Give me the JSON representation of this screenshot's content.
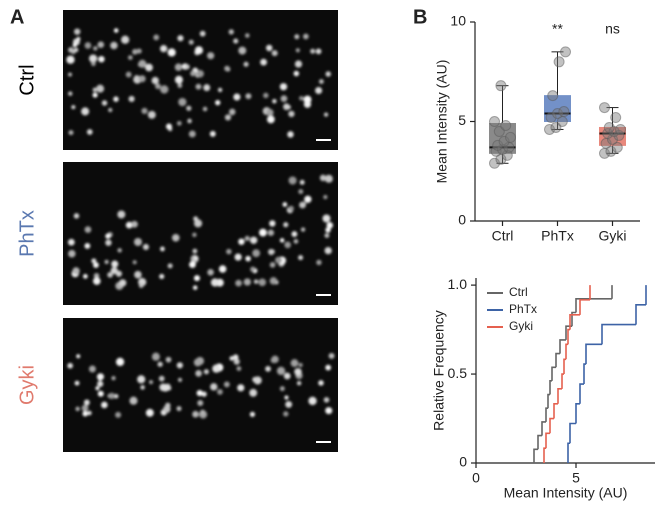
{
  "panel_labels": [
    "A",
    "B"
  ],
  "images": [
    {
      "label": "Ctrl",
      "color": "#000000"
    },
    {
      "label": "PhTx",
      "color": "#5a78b0"
    },
    {
      "label": "Gyki",
      "color": "#e07a6d"
    }
  ],
  "chart_data": [
    {
      "type": "box",
      "y_label": "Mean Intensity (AU)",
      "categories": [
        "Ctrl",
        "PhTx",
        "Gyki"
      ],
      "colors": [
        "#8a8a8a",
        "#7391c8",
        "#e8887c"
      ],
      "whisker_low": [
        2.9,
        4.6,
        3.4
      ],
      "q1": [
        3.4,
        5.0,
        3.8
      ],
      "median": [
        3.7,
        5.4,
        4.4
      ],
      "q3": [
        4.9,
        6.3,
        4.7
      ],
      "whisker_high": [
        6.8,
        8.5,
        5.7
      ],
      "points": [
        [
          2.9,
          3.1,
          3.3,
          3.5,
          3.6,
          3.7,
          3.8,
          4.0,
          4.2,
          4.5,
          4.8,
          5.0,
          6.8
        ],
        [
          4.6,
          4.7,
          5.0,
          5.2,
          5.4,
          5.5,
          6.3,
          8.0,
          8.5
        ],
        [
          3.4,
          3.5,
          3.7,
          3.9,
          4.1,
          4.3,
          4.4,
          4.5,
          4.6,
          4.7,
          5.2,
          5.7
        ]
      ],
      "annotations": [
        null,
        "**",
        "ns"
      ],
      "ylim": [
        0,
        10
      ],
      "yticks": [
        0,
        5,
        10
      ]
    },
    {
      "type": "ecdf",
      "x_label": "Mean Intensity (AU)",
      "y_label": "Relative Frequency",
      "series": [
        {
          "name": "Ctrl",
          "color": "#666666",
          "x": [
            2.9,
            3.1,
            3.3,
            3.5,
            3.6,
            3.7,
            3.8,
            4.0,
            4.2,
            4.5,
            4.8,
            5.0,
            6.8
          ],
          "y": [
            0.077,
            0.154,
            0.231,
            0.308,
            0.385,
            0.462,
            0.538,
            0.615,
            0.692,
            0.769,
            0.846,
            0.923,
            1.0
          ]
        },
        {
          "name": "PhTx",
          "color": "#3d63a6",
          "x": [
            4.6,
            4.7,
            5.0,
            5.2,
            5.4,
            5.5,
            6.3,
            8.0,
            8.5
          ],
          "y": [
            0.111,
            0.222,
            0.333,
            0.444,
            0.556,
            0.667,
            0.778,
            0.889,
            1.0
          ]
        },
        {
          "name": "Gyki",
          "color": "#e5604f",
          "x": [
            3.4,
            3.5,
            3.7,
            3.9,
            4.1,
            4.3,
            4.4,
            4.5,
            4.6,
            4.7,
            5.2,
            5.7
          ],
          "y": [
            0.083,
            0.167,
            0.25,
            0.333,
            0.417,
            0.5,
            0.583,
            0.667,
            0.75,
            0.833,
            0.917,
            1.0
          ]
        }
      ],
      "xlim": [
        0,
        8.95
      ],
      "xticks": [
        0,
        5
      ],
      "ylim": [
        0,
        1.04
      ],
      "yticks": [
        0,
        0.5,
        {
          "value": 1,
          "label": "1.0"
        }
      ]
    }
  ]
}
